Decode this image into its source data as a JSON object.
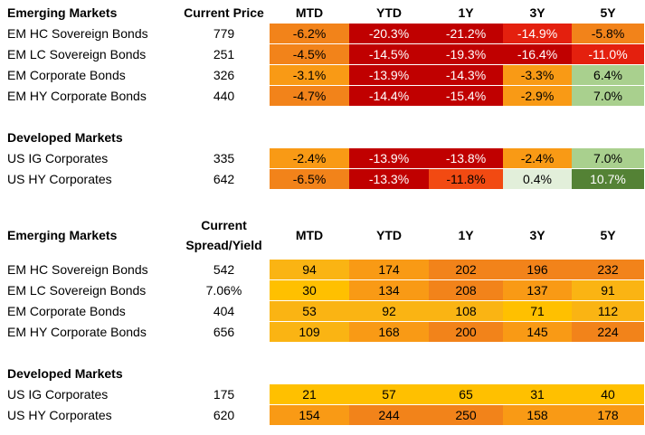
{
  "colors": {
    "dark_red": "#C00000",
    "red": "#E4200E",
    "red_orange": "#F24A12",
    "orange": "#F2831A",
    "amber": "#F99A15",
    "yellow_orange": "#FAB413",
    "yellow": "#FFC000",
    "light_green": "#A9D08E",
    "pale_green": "#E2EFDA",
    "dark_green": "#548235"
  },
  "price_table": {
    "em_title": "Emerging Markets",
    "price_header": "Current Price",
    "period_headers": [
      "MTD",
      "YTD",
      "1Y",
      "3Y",
      "5Y"
    ],
    "em_rows": [
      {
        "name": "EM HC Sovereign Bonds",
        "price": "779",
        "values": [
          "-6.2%",
          "-20.3%",
          "-21.2%",
          "-14.9%",
          "-5.8%"
        ],
        "colors": [
          "#F2831A",
          "#C00000",
          "#C00000",
          "#E4200E",
          "#F2831A"
        ]
      },
      {
        "name": "EM LC Sovereign Bonds",
        "price": "251",
        "values": [
          "-4.5%",
          "-14.5%",
          "-19.3%",
          "-16.4%",
          "-11.0%"
        ],
        "colors": [
          "#F2831A",
          "#C00000",
          "#C00000",
          "#C00000",
          "#E4200E"
        ]
      },
      {
        "name": "EM Corporate Bonds",
        "price": "326",
        "values": [
          "-3.1%",
          "-13.9%",
          "-14.3%",
          "-3.3%",
          "6.4%"
        ],
        "colors": [
          "#F99A15",
          "#C00000",
          "#C00000",
          "#F99A15",
          "#A9D08E"
        ]
      },
      {
        "name": "EM HY Corporate Bonds",
        "price": "440",
        "values": [
          "-4.7%",
          "-14.4%",
          "-15.4%",
          "-2.9%",
          "7.0%"
        ],
        "colors": [
          "#F2831A",
          "#C00000",
          "#C00000",
          "#F99A15",
          "#A9D08E"
        ]
      }
    ],
    "dm_title": "Developed Markets",
    "dm_rows": [
      {
        "name": "US IG Corporates",
        "price": "335",
        "values": [
          "-2.4%",
          "-13.9%",
          "-13.8%",
          "-2.4%",
          "7.0%"
        ],
        "colors": [
          "#F99A15",
          "#C00000",
          "#C00000",
          "#F99A15",
          "#A9D08E"
        ]
      },
      {
        "name": "US HY Corporates",
        "price": "642",
        "values": [
          "-6.5%",
          "-13.3%",
          "-11.8%",
          "0.4%",
          "10.7%"
        ],
        "colors": [
          "#F2831A",
          "#C00000",
          "#F24A12",
          "#E2EFDA",
          "#548235"
        ]
      }
    ]
  },
  "spread_table": {
    "em_title": "Emerging Markets",
    "spread_header_line1": "Current",
    "spread_header_line2": "Spread/Yield",
    "period_headers": [
      "MTD",
      "YTD",
      "1Y",
      "3Y",
      "5Y"
    ],
    "em_rows": [
      {
        "name": "EM HC Sovereign Bonds",
        "spread": "542",
        "values": [
          "94",
          "174",
          "202",
          "196",
          "232"
        ],
        "colors": [
          "#FAB413",
          "#F99A15",
          "#F2831A",
          "#F2831A",
          "#F2831A"
        ]
      },
      {
        "name": "EM LC Sovereign Bonds",
        "spread": "7.06%",
        "values": [
          "30",
          "134",
          "208",
          "137",
          "91"
        ],
        "colors": [
          "#FFC000",
          "#F99A15",
          "#F2831A",
          "#F99A15",
          "#FAB413"
        ]
      },
      {
        "name": "EM Corporate Bonds",
        "spread": "404",
        "values": [
          "53",
          "92",
          "108",
          "71",
          "112"
        ],
        "colors": [
          "#FAB413",
          "#FAB413",
          "#FAB413",
          "#FFC000",
          "#FAB413"
        ]
      },
      {
        "name": "EM HY Corporate Bonds",
        "spread": "656",
        "values": [
          "109",
          "168",
          "200",
          "145",
          "224"
        ],
        "colors": [
          "#FAB413",
          "#F99A15",
          "#F2831A",
          "#F99A15",
          "#F2831A"
        ]
      }
    ],
    "dm_title": "Developed Markets",
    "dm_rows": [
      {
        "name": "US IG Corporates",
        "spread": "175",
        "values": [
          "21",
          "57",
          "65",
          "31",
          "40"
        ],
        "colors": [
          "#FFC000",
          "#FFC000",
          "#FFC000",
          "#FFC000",
          "#FFC000"
        ]
      },
      {
        "name": "US HY Corporates",
        "spread": "620",
        "values": [
          "154",
          "244",
          "250",
          "158",
          "178"
        ],
        "colors": [
          "#F99A15",
          "#F2831A",
          "#F2831A",
          "#F99A15",
          "#F99A15"
        ]
      }
    ]
  }
}
